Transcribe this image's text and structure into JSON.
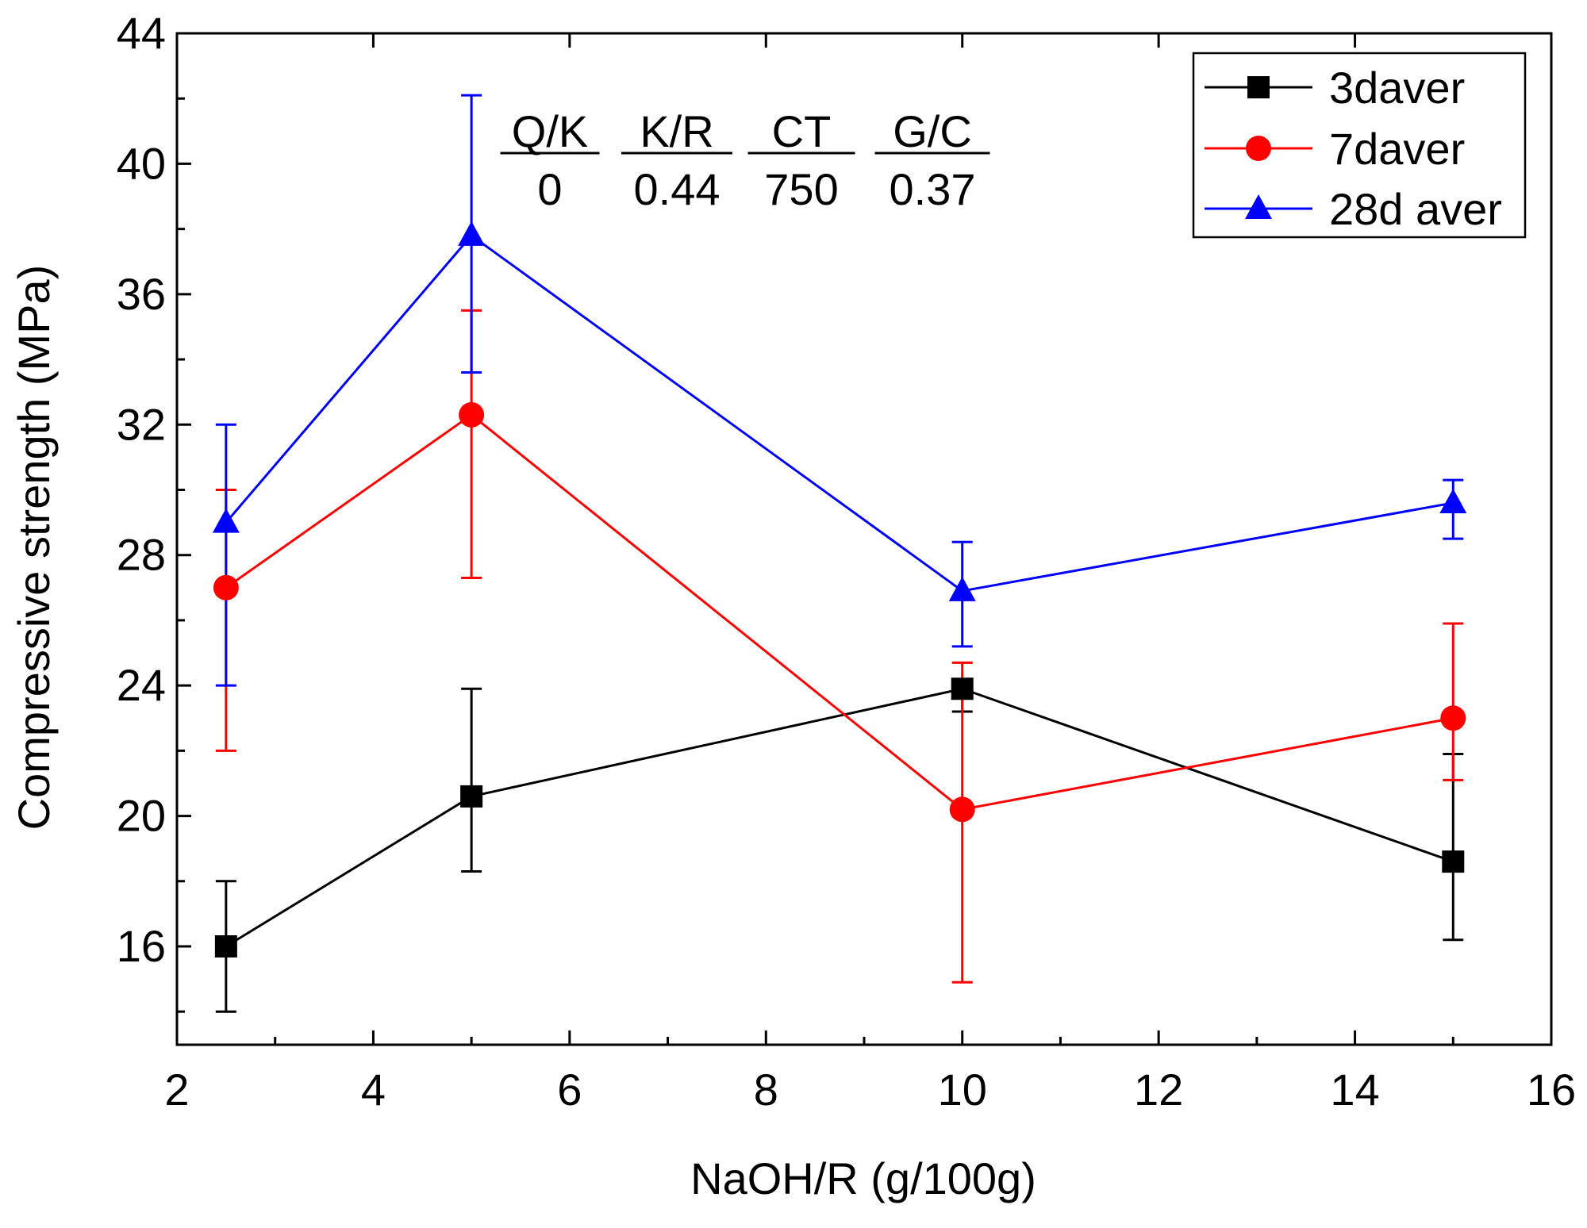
{
  "chart_data": {
    "type": "line",
    "title": "",
    "xlabel": "NaOH/R (g/100g)",
    "ylabel": "Compressive strength (MPa)",
    "xlim": [
      2,
      16
    ],
    "ylim": [
      13,
      44
    ],
    "x_ticks": [
      2,
      4,
      6,
      8,
      10,
      12,
      14,
      16
    ],
    "y_ticks": [
      16,
      20,
      24,
      28,
      32,
      36,
      40,
      44
    ],
    "x": [
      2.5,
      5,
      10,
      15
    ],
    "series": [
      {
        "name": "3daver",
        "color": "#000000",
        "marker": "square",
        "values": [
          16.0,
          20.6,
          23.9,
          18.6
        ],
        "err_upper": [
          18.0,
          23.9,
          23.9,
          21.9
        ],
        "err_lower": [
          14.0,
          18.3,
          23.2,
          16.2
        ]
      },
      {
        "name": "7daver",
        "color": "#ff0000",
        "marker": "circle",
        "values": [
          27.0,
          32.3,
          20.2,
          23.0
        ],
        "err_upper": [
          30.0,
          35.5,
          24.7,
          25.9
        ],
        "err_lower": [
          22.0,
          27.3,
          14.9,
          21.1
        ]
      },
      {
        "name": "28d aver",
        "color": "#0000ff",
        "marker": "triangle",
        "values": [
          29.0,
          37.8,
          26.9,
          29.6
        ],
        "err_upper": [
          32.0,
          42.1,
          28.4,
          30.3
        ],
        "err_lower": [
          24.0,
          33.6,
          25.2,
          28.5
        ]
      }
    ],
    "annotation_table": {
      "headers": [
        "Q/K",
        "K/R",
        "CT",
        "G/C"
      ],
      "values": [
        "0",
        "0.44",
        "750",
        "0.37"
      ]
    },
    "legend_position": "top-right",
    "grid": false
  }
}
